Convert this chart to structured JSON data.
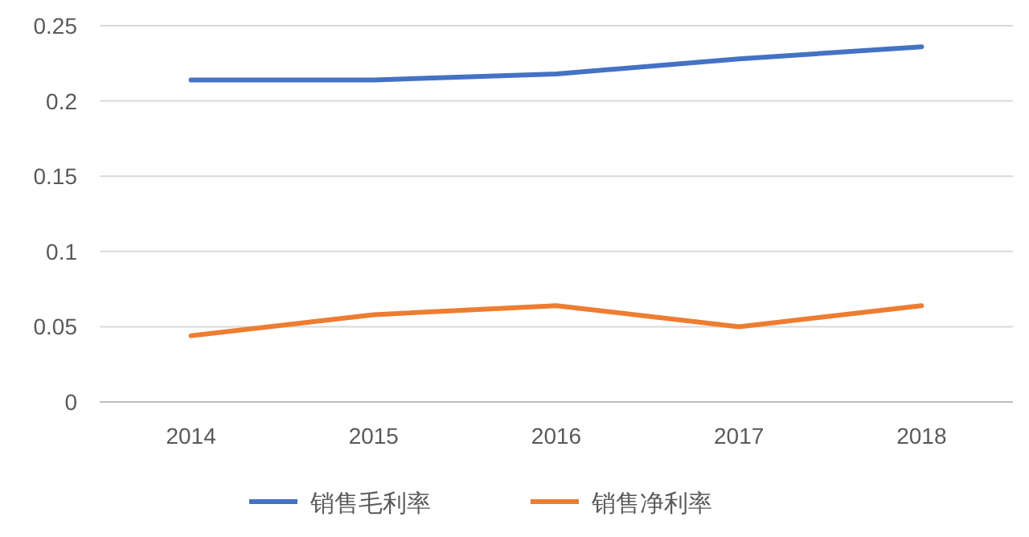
{
  "chart_data": {
    "type": "line",
    "categories": [
      "2014",
      "2015",
      "2016",
      "2017",
      "2018"
    ],
    "series": [
      {
        "name": "销售毛利率",
        "color": "#4472c4",
        "values": [
          0.214,
          0.214,
          0.218,
          0.228,
          0.236
        ]
      },
      {
        "name": "销售净利率",
        "color": "#ed7d31",
        "values": [
          0.044,
          0.058,
          0.064,
          0.05,
          0.064
        ]
      }
    ],
    "ylim": [
      0,
      0.25
    ],
    "yticks": [
      0,
      0.05,
      0.1,
      0.15,
      0.2,
      0.25
    ],
    "grid": "y",
    "legend": "bottom"
  }
}
